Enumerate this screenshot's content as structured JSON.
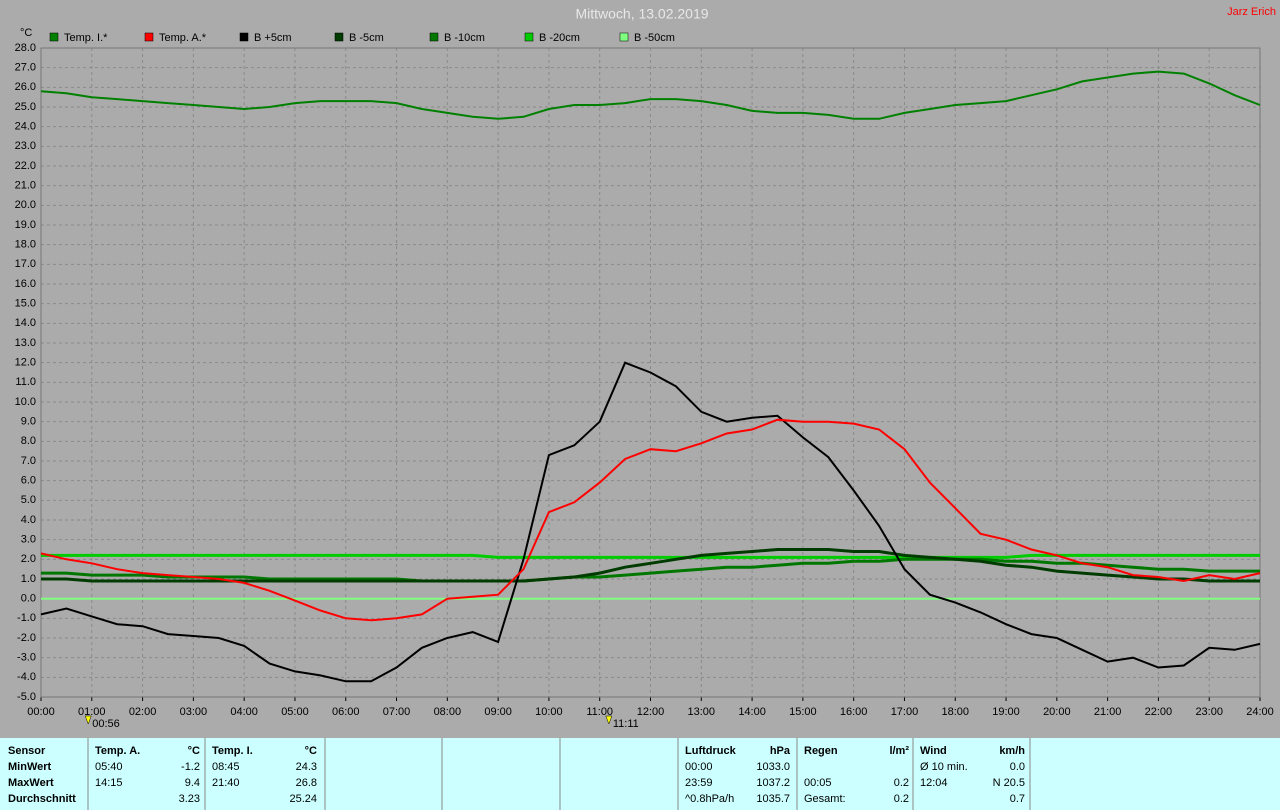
{
  "chart_data": {
    "type": "line",
    "title": "Mittwoch, 13.02.2019",
    "author": "Jarz Erich",
    "y_label": "°C",
    "xlim": [
      0,
      24
    ],
    "xticks": [
      {
        "value": 0,
        "label": "00:00"
      },
      {
        "value": 1,
        "label": "01:00"
      },
      {
        "value": 2,
        "label": "02:00"
      },
      {
        "value": 3,
        "label": "03:00"
      },
      {
        "value": 4,
        "label": "04:00"
      },
      {
        "value": 5,
        "label": "05:00"
      },
      {
        "value": 6,
        "label": "06:00"
      },
      {
        "value": 7,
        "label": "07:00"
      },
      {
        "value": 8,
        "label": "08:00"
      },
      {
        "value": 9,
        "label": "09:00"
      },
      {
        "value": 10,
        "label": "10:00"
      },
      {
        "value": 11,
        "label": "11:00"
      },
      {
        "value": 12,
        "label": "12:00"
      },
      {
        "value": 13,
        "label": "13:00"
      },
      {
        "value": 14,
        "label": "14:00"
      },
      {
        "value": 15,
        "label": "15:00"
      },
      {
        "value": 16,
        "label": "16:00"
      },
      {
        "value": 17,
        "label": "17:00"
      },
      {
        "value": 18,
        "label": "18:00"
      },
      {
        "value": 19,
        "label": "19:00"
      },
      {
        "value": 20,
        "label": "20:00"
      },
      {
        "value": 21,
        "label": "21:00"
      },
      {
        "value": 22,
        "label": "22:00"
      },
      {
        "value": 23,
        "label": "23:00"
      },
      {
        "value": 24,
        "label": "24:00"
      }
    ],
    "ylim": [
      -5,
      28
    ],
    "yticks": [
      {
        "value": -5,
        "label": "-5.0"
      },
      {
        "value": -4,
        "label": "-4.0"
      },
      {
        "value": -3,
        "label": "-3.0"
      },
      {
        "value": -2,
        "label": "-2.0"
      },
      {
        "value": -1,
        "label": "-1.0"
      },
      {
        "value": 0,
        "label": "0.0"
      },
      {
        "value": 1,
        "label": "1.0"
      },
      {
        "value": 2,
        "label": "2.0"
      },
      {
        "value": 3,
        "label": "3.0"
      },
      {
        "value": 4,
        "label": "4.0"
      },
      {
        "value": 5,
        "label": "5.0"
      },
      {
        "value": 6,
        "label": "6.0"
      },
      {
        "value": 7,
        "label": "7.0"
      },
      {
        "value": 8,
        "label": "8.0"
      },
      {
        "value": 9,
        "label": "9.0"
      },
      {
        "value": 10,
        "label": "10.0"
      },
      {
        "value": 11,
        "label": "11.0"
      },
      {
        "value": 12,
        "label": "12.0"
      },
      {
        "value": 13,
        "label": "13.0"
      },
      {
        "value": 14,
        "label": "14.0"
      },
      {
        "value": 15,
        "label": "15.0"
      },
      {
        "value": 16,
        "label": "16.0"
      },
      {
        "value": 17,
        "label": "17.0"
      },
      {
        "value": 18,
        "label": "18.0"
      },
      {
        "value": 19,
        "label": "19.0"
      },
      {
        "value": 20,
        "label": "20.0"
      },
      {
        "value": 21,
        "label": "21.0"
      },
      {
        "value": 22,
        "label": "22.0"
      },
      {
        "value": 23,
        "label": "23.0"
      },
      {
        "value": 24,
        "label": "24.0"
      },
      {
        "value": 25,
        "label": "25.0"
      },
      {
        "value": 26,
        "label": "26.0"
      },
      {
        "value": 27,
        "label": "27.0"
      },
      {
        "value": 28,
        "label": "28.0"
      }
    ],
    "grid": true,
    "x": [
      0,
      0.5,
      1,
      1.5,
      2,
      2.5,
      3,
      3.5,
      4,
      4.5,
      5,
      5.5,
      6,
      6.5,
      7,
      7.5,
      8,
      8.5,
      9,
      9.5,
      10,
      10.5,
      11,
      11.5,
      12,
      12.5,
      13,
      13.5,
      14,
      14.5,
      15,
      15.5,
      16,
      16.5,
      17,
      17.5,
      18,
      18.5,
      19,
      19.5,
      20,
      20.5,
      21,
      21.5,
      22,
      22.5,
      23,
      23.5,
      24
    ],
    "series": [
      {
        "name": "Temp. I.*",
        "color": "#008000",
        "width": 2,
        "values": [
          25.8,
          25.7,
          25.5,
          25.4,
          25.3,
          25.2,
          25.1,
          25.0,
          24.9,
          25.0,
          25.2,
          25.3,
          25.3,
          25.3,
          25.2,
          24.9,
          24.7,
          24.5,
          24.4,
          24.5,
          24.9,
          25.1,
          25.1,
          25.2,
          25.4,
          25.4,
          25.3,
          25.1,
          24.8,
          24.7,
          24.7,
          24.6,
          24.4,
          24.4,
          24.7,
          24.9,
          25.1,
          25.2,
          25.3,
          25.6,
          25.9,
          26.3,
          26.5,
          26.7,
          26.8,
          26.7,
          26.2,
          25.6,
          25.1
        ]
      },
      {
        "name": "Temp. A.*",
        "color": "#ff0000",
        "width": 2,
        "values": [
          2.3,
          2.0,
          1.8,
          1.5,
          1.3,
          1.2,
          1.1,
          1.0,
          0.8,
          0.4,
          -0.1,
          -0.6,
          -1.0,
          -1.1,
          -1.0,
          -0.8,
          0.0,
          0.1,
          0.2,
          1.5,
          4.4,
          4.9,
          5.9,
          7.1,
          7.6,
          7.5,
          7.9,
          8.4,
          8.6,
          9.1,
          9.0,
          9.0,
          8.9,
          8.6,
          7.6,
          5.9,
          4.6,
          3.3,
          3.0,
          2.5,
          2.2,
          1.8,
          1.6,
          1.2,
          1.1,
          0.9,
          1.2,
          1.0,
          1.3
        ]
      },
      {
        "name": "B +5cm",
        "color": "#000000",
        "width": 2,
        "values": [
          -0.8,
          -0.5,
          -0.9,
          -1.3,
          -1.4,
          -1.8,
          -1.9,
          -2.0,
          -2.4,
          -3.3,
          -3.7,
          -3.9,
          -4.2,
          -4.2,
          -3.5,
          -2.5,
          -2.0,
          -1.7,
          -2.2,
          2.0,
          7.3,
          7.8,
          9.0,
          12.0,
          11.5,
          10.8,
          9.5,
          9.0,
          9.2,
          9.3,
          8.2,
          7.2,
          5.5,
          3.7,
          1.5,
          0.2,
          -0.2,
          -0.7,
          -1.3,
          -1.8,
          -2.0,
          -2.6,
          -3.2,
          -3.0,
          -3.5,
          -3.4,
          -2.5,
          -2.6,
          -2.3
        ]
      },
      {
        "name": "B -5cm",
        "color": "#003c00",
        "width": 3,
        "values": [
          1.0,
          1.0,
          0.9,
          0.9,
          0.9,
          0.9,
          0.9,
          0.9,
          0.9,
          0.9,
          0.9,
          0.9,
          0.9,
          0.9,
          0.9,
          0.9,
          0.9,
          0.9,
          0.9,
          0.9,
          1.0,
          1.1,
          1.3,
          1.6,
          1.8,
          2.0,
          2.2,
          2.3,
          2.4,
          2.5,
          2.5,
          2.5,
          2.4,
          2.4,
          2.2,
          2.1,
          2.0,
          1.9,
          1.7,
          1.6,
          1.4,
          1.3,
          1.2,
          1.1,
          1.0,
          1.0,
          0.9,
          0.9,
          0.9
        ]
      },
      {
        "name": "B -10cm",
        "color": "#007800",
        "width": 3,
        "values": [
          1.3,
          1.3,
          1.2,
          1.2,
          1.2,
          1.1,
          1.1,
          1.1,
          1.1,
          1.0,
          1.0,
          1.0,
          1.0,
          1.0,
          1.0,
          0.9,
          0.9,
          0.9,
          0.9,
          0.9,
          1.0,
          1.1,
          1.1,
          1.2,
          1.3,
          1.4,
          1.5,
          1.6,
          1.6,
          1.7,
          1.8,
          1.8,
          1.9,
          1.9,
          2.0,
          2.0,
          2.0,
          2.0,
          1.9,
          1.9,
          1.8,
          1.8,
          1.7,
          1.6,
          1.5,
          1.5,
          1.4,
          1.4,
          1.4
        ]
      },
      {
        "name": "B -20cm",
        "color": "#00cc00",
        "width": 3,
        "values": [
          2.2,
          2.2,
          2.2,
          2.2,
          2.2,
          2.2,
          2.2,
          2.2,
          2.2,
          2.2,
          2.2,
          2.2,
          2.2,
          2.2,
          2.2,
          2.2,
          2.2,
          2.2,
          2.1,
          2.1,
          2.1,
          2.1,
          2.1,
          2.1,
          2.1,
          2.1,
          2.1,
          2.1,
          2.1,
          2.1,
          2.1,
          2.1,
          2.1,
          2.1,
          2.1,
          2.1,
          2.1,
          2.1,
          2.1,
          2.2,
          2.2,
          2.2,
          2.2,
          2.2,
          2.2,
          2.2,
          2.2,
          2.2,
          2.2
        ]
      },
      {
        "name": "B -50cm",
        "color": "#80ff80",
        "width": 2,
        "values": [
          0.0,
          0.0,
          0.0,
          0.0,
          0.0,
          0.0,
          0.0,
          0.0,
          0.0,
          0.0,
          0.0,
          0.0,
          0.0,
          0.0,
          0.0,
          0.0,
          0.0,
          0.0,
          0.0,
          0.0,
          0.0,
          0.0,
          0.0,
          0.0,
          0.0,
          0.0,
          0.0,
          0.0,
          0.0,
          0.0,
          0.0,
          0.0,
          0.0,
          0.0,
          0.0,
          0.0,
          0.0,
          0.0,
          0.0,
          0.0,
          0.0,
          0.0,
          0.0,
          0.0,
          0.0,
          0.0,
          0.0,
          0.0,
          0.0
        ]
      }
    ],
    "annotations": [
      {
        "x": 0.93,
        "label": "00:56"
      },
      {
        "x": 11.18,
        "label": "11:11"
      }
    ]
  },
  "table": {
    "row_labels": [
      "Sensor",
      "MinWert",
      "MaxWert",
      "Durchschnitt"
    ],
    "panels": [
      {
        "left": 88,
        "header": [
          "Temp. A.",
          "°C"
        ],
        "rows": [
          [
            "05:40",
            "-1.2"
          ],
          [
            "14:15",
            "9.4"
          ],
          [
            "3.23"
          ]
        ]
      },
      {
        "left": 205,
        "header": [
          "Temp. I.",
          "°C"
        ],
        "rows": [
          [
            "08:45",
            "24.3"
          ],
          [
            "21:40",
            "26.8"
          ],
          [
            "25.24"
          ]
        ]
      },
      {
        "left": 678,
        "header": [
          "Luftdruck",
          "hPa"
        ],
        "rows": [
          [
            "00:00",
            "1033.0"
          ],
          [
            "23:59",
            "1037.2"
          ],
          [
            "^0.8hPa/h",
            "1035.7"
          ]
        ]
      },
      {
        "left": 797,
        "header": [
          "Regen",
          "l/m²"
        ],
        "rows": [
          null,
          [
            "00:05",
            "0.2"
          ],
          [
            "Gesamt:",
            "0.2"
          ]
        ]
      },
      {
        "left": 913,
        "header": [
          "Wind",
          "km/h"
        ],
        "rows": [
          [
            "Ø 10 min.",
            "0.0"
          ],
          [
            "12:04",
            "N 20.5"
          ],
          [
            "0.7"
          ]
        ]
      }
    ]
  }
}
